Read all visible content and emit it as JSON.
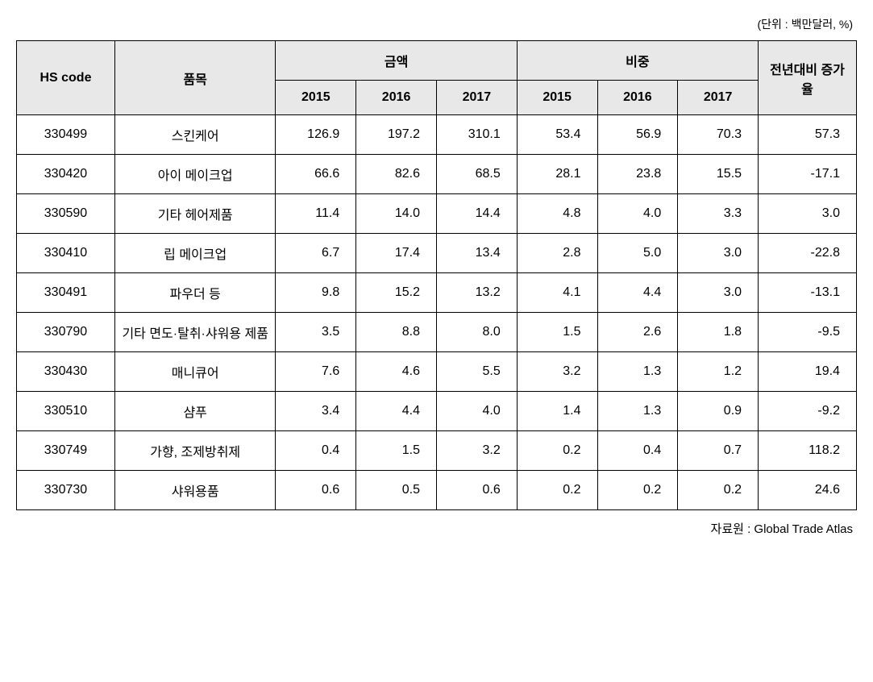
{
  "unit_label": "(단위 : 백만달러, %)",
  "source_label": "자료원 : Global Trade Atlas",
  "header": {
    "hs_code": "HS code",
    "item": "품목",
    "amount": "금액",
    "share": "비중",
    "growth": "전년대비 증가율",
    "year_2015": "2015",
    "year_2016": "2016",
    "year_2017": "2017"
  },
  "rows": [
    {
      "hs": "330499",
      "item": "스킨케어",
      "a15": "126.9",
      "a16": "197.2",
      "a17": "310.1",
      "s15": "53.4",
      "s16": "56.9",
      "s17": "70.3",
      "growth": "57.3"
    },
    {
      "hs": "330420",
      "item": "아이 메이크업",
      "a15": "66.6",
      "a16": "82.6",
      "a17": "68.5",
      "s15": "28.1",
      "s16": "23.8",
      "s17": "15.5",
      "growth": "-17.1"
    },
    {
      "hs": "330590",
      "item": "기타 헤어제품",
      "a15": "11.4",
      "a16": "14.0",
      "a17": "14.4",
      "s15": "4.8",
      "s16": "4.0",
      "s17": "3.3",
      "growth": "3.0"
    },
    {
      "hs": "330410",
      "item": "립 메이크업",
      "a15": "6.7",
      "a16": "17.4",
      "a17": "13.4",
      "s15": "2.8",
      "s16": "5.0",
      "s17": "3.0",
      "growth": "-22.8"
    },
    {
      "hs": "330491",
      "item": "파우더 등",
      "a15": "9.8",
      "a16": "15.2",
      "a17": "13.2",
      "s15": "4.1",
      "s16": "4.4",
      "s17": "3.0",
      "growth": "-13.1"
    },
    {
      "hs": "330790",
      "item": "기타 면도·탈취·샤워용 제품",
      "a15": "3.5",
      "a16": "8.8",
      "a17": "8.0",
      "s15": "1.5",
      "s16": "2.6",
      "s17": "1.8",
      "growth": "-9.5"
    },
    {
      "hs": "330430",
      "item": "매니큐어",
      "a15": "7.6",
      "a16": "4.6",
      "a17": "5.5",
      "s15": "3.2",
      "s16": "1.3",
      "s17": "1.2",
      "growth": "19.4"
    },
    {
      "hs": "330510",
      "item": "샴푸",
      "a15": "3.4",
      "a16": "4.4",
      "a17": "4.0",
      "s15": "1.4",
      "s16": "1.3",
      "s17": "0.9",
      "growth": "-9.2"
    },
    {
      "hs": "330749",
      "item": "가향, 조제방취제",
      "a15": "0.4",
      "a16": "1.5",
      "a17": "3.2",
      "s15": "0.2",
      "s16": "0.4",
      "s17": "0.7",
      "growth": "118.2"
    },
    {
      "hs": "330730",
      "item": "샤워용품",
      "a15": "0.6",
      "a16": "0.5",
      "a17": "0.6",
      "s15": "0.2",
      "s16": "0.2",
      "s17": "0.2",
      "growth": "24.6"
    }
  ]
}
